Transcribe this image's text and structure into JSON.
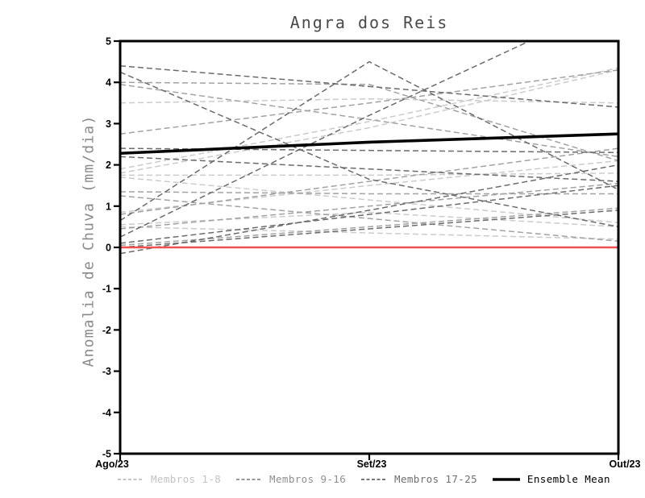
{
  "title": "Angra dos Reis",
  "y_axis": {
    "label": "Anomalia de Chuva (mm/dia)",
    "ticks": [
      5,
      4,
      3,
      2,
      1,
      0,
      -1,
      -2,
      -3,
      -4,
      -5
    ]
  },
  "x_axis": {
    "ticks": [
      "Ago/23",
      "Set/23",
      "Out/23"
    ]
  },
  "legend": {
    "items": [
      {
        "label": "Membros 1-8",
        "color": "#c6c6c6",
        "text_color": "#c2c2c2",
        "style": "dashed"
      },
      {
        "label": "Membros 9-16",
        "color": "#989898",
        "text_color": "#8f8f8f",
        "style": "dashed"
      },
      {
        "label": "Membros 17-25",
        "color": "#787878",
        "text_color": "#6f6f6f",
        "style": "dashed"
      },
      {
        "label": "Ensemble Mean",
        "color": "#000000",
        "text_color": "#000000",
        "style": "solid"
      }
    ]
  },
  "chart_data": {
    "type": "line",
    "title": "Angra dos Reis",
    "x": [
      "Ago/23",
      "Set/23",
      "Out/23"
    ],
    "ylabel": "Anomalia de Chuva (mm/dia)",
    "ylim": [
      -5,
      5
    ],
    "grid": false,
    "legend_position": "bottom",
    "series": [
      {
        "name": "Membros 1-8",
        "color": "#cbcbcb",
        "line_style": "dashed",
        "members": [
          [
            3.5,
            3.6,
            3.5
          ],
          [
            1.9,
            3.05,
            4.35
          ],
          [
            1.8,
            2.9,
            4.3
          ],
          [
            1.75,
            1.75,
            1.8
          ],
          [
            1.7,
            1.15,
            0.6
          ],
          [
            0.85,
            1.5,
            2.1
          ],
          [
            0.55,
            0.85,
            0.5
          ],
          [
            0.5,
            0.35,
            0.2
          ]
        ]
      },
      {
        "name": "Membros 9-16",
        "color": "#a2a2a2",
        "line_style": "dashed",
        "members": [
          [
            4.0,
            3.95,
            2.1
          ],
          [
            3.95,
            3.1,
            2.2
          ],
          [
            2.75,
            3.5,
            4.3
          ],
          [
            1.35,
            1.3,
            1.3
          ],
          [
            1.25,
            0.7,
            0.15
          ],
          [
            0.8,
            1.6,
            2.4
          ],
          [
            0.45,
            1.0,
            1.55
          ],
          [
            0.05,
            0.5,
            0.95
          ]
        ]
      },
      {
        "name": "Membros 17-25",
        "color": "#6b6b6b",
        "line_style": "dashed",
        "members": [
          [
            4.4,
            3.9,
            3.4
          ],
          [
            4.25,
            1.65,
            0.5
          ],
          [
            2.4,
            2.35,
            2.3
          ],
          [
            2.2,
            1.9,
            1.6
          ],
          [
            0.65,
            4.5,
            1.4
          ],
          [
            0.25,
            3.2,
            6.0
          ],
          [
            0.1,
            0.8,
            1.5
          ],
          [
            0.0,
            0.45,
            0.9
          ],
          [
            -0.15,
            0.9,
            2.0
          ]
        ]
      }
    ],
    "ensemble_mean": {
      "name": "Ensemble Mean",
      "color": "#000000",
      "values": [
        2.28,
        2.55,
        2.75
      ]
    },
    "reference_line": {
      "value": 0,
      "color": "#f15050"
    }
  }
}
